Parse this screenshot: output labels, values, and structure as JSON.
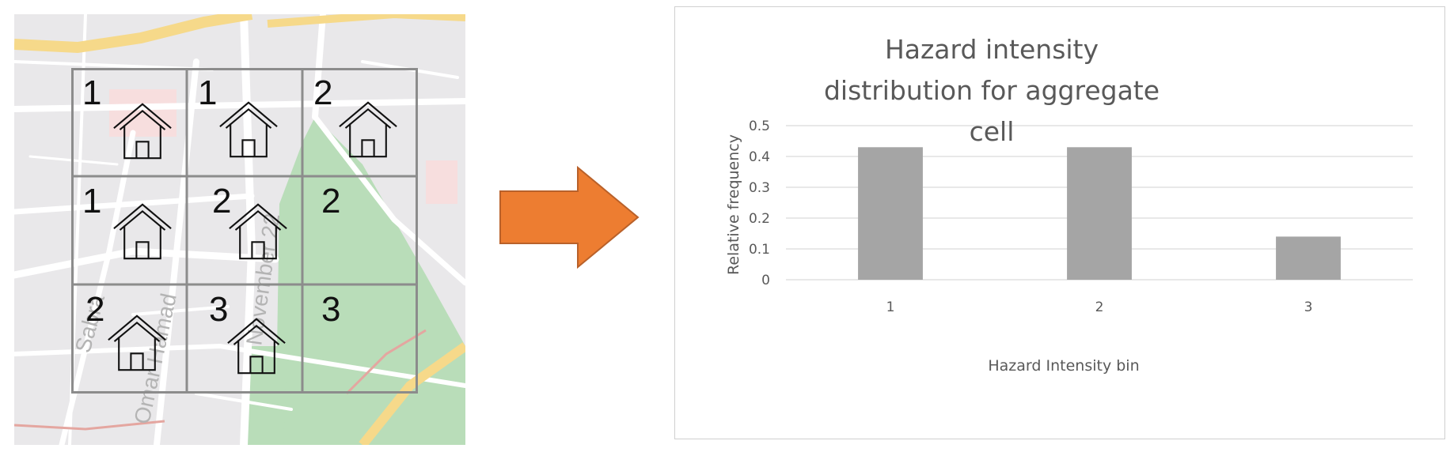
{
  "map": {
    "street_labels": [
      "Sabra",
      "Omar Hamad",
      "November 22"
    ],
    "cells": [
      {
        "value": "1",
        "has_house": true
      },
      {
        "value": "1",
        "has_house": true
      },
      {
        "value": "2",
        "has_house": true
      },
      {
        "value": "1",
        "has_house": true
      },
      {
        "value": "2",
        "has_house": true
      },
      {
        "value": "2",
        "has_house": false
      },
      {
        "value": "2",
        "has_house": true
      },
      {
        "value": "3",
        "has_house": true
      },
      {
        "value": "3",
        "has_house": false
      }
    ],
    "colors": {
      "background": "#e9e8ea",
      "road": "#ffffff",
      "major_road": "#f6d98a",
      "park": "#b9ddb9",
      "grid": "#8c8c8c"
    }
  },
  "arrow": {
    "color": "#ed7d31"
  },
  "chart_data": {
    "type": "bar",
    "title": "Hazard intensity distribution for aggregate cell",
    "xlabel": "Hazard Intensity bin",
    "ylabel": "Relative frequency",
    "categories": [
      "1",
      "2",
      "3"
    ],
    "values": [
      0.43,
      0.43,
      0.14
    ],
    "ylim": [
      0,
      0.5
    ],
    "yticks": [
      "0",
      "0.1",
      "0.2",
      "0.3",
      "0.4",
      "0.5"
    ],
    "grid": true,
    "legend": "none",
    "bar_color": "#a5a5a5"
  }
}
